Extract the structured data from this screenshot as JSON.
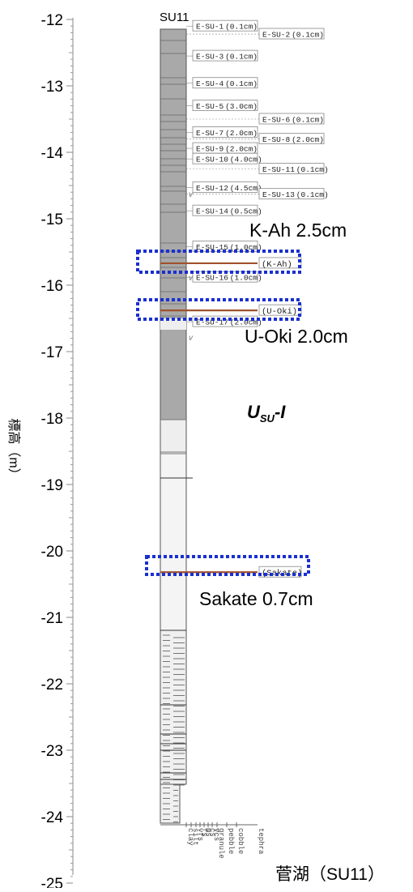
{
  "column_title": "SU11",
  "y_axis": {
    "label": "標高（m）",
    "tick_labels": [
      "-12",
      "-13",
      "-14",
      "-15",
      "-16",
      "-17",
      "-18",
      "-19",
      "-20",
      "-21",
      "-22",
      "-23",
      "-24",
      "-25"
    ]
  },
  "samples": [
    {
      "label": "E-SU-1 (0.1cm)",
      "elev": -12.1,
      "col": 1
    },
    {
      "label": "E-SU-2 (0.1cm)",
      "elev": -12.22,
      "col": 2
    },
    {
      "label": "E-SU-3 (0.1cm)",
      "elev": -12.55,
      "col": 1
    },
    {
      "label": "E-SU-4 (0.1cm)",
      "elev": -12.96,
      "col": 1
    },
    {
      "label": "E-SU-5 (3.0cm)",
      "elev": -13.3,
      "col": 1
    },
    {
      "label": "E-SU-6 (0.1cm)",
      "elev": -13.5,
      "col": 2
    },
    {
      "label": "E-SU-7 (2.0cm)",
      "elev": -13.7,
      "col": 1
    },
    {
      "label": "E-SU-8 (2.0cm)",
      "elev": -13.8,
      "col": 2
    },
    {
      "label": "E-SU-9 (2.0cm)",
      "elev": -13.94,
      "col": 1
    },
    {
      "label": "E-SU-10 (4.0cm)",
      "elev": -14.1,
      "col": 1
    },
    {
      "label": "E-SU-11 (0.1cm)",
      "elev": -14.25,
      "col": 2
    },
    {
      "label": "E-SU-12 (4.5cm)",
      "elev": -14.53,
      "col": 1
    },
    {
      "label": "E-SU-13 (0.1cm)",
      "elev": -14.63,
      "col": 2
    },
    {
      "label": "E-SU-14 (0.5cm)",
      "elev": -14.88,
      "col": 1
    },
    {
      "label": "E-SU-15 (1.0cm)",
      "elev": -15.42,
      "col": 1
    },
    {
      "label": "E-SU-16 (1.0cm)",
      "elev": -15.88,
      "col": 1
    },
    {
      "label": "E-SU-17 (2.0cm)",
      "elev": -16.55,
      "col": 1
    }
  ],
  "tephra_in_column": [
    {
      "label": "(K-Ah)",
      "elev": -15.67
    },
    {
      "label": "(U-Oki)",
      "elev": -16.38
    },
    {
      "label": "(Sakate)",
      "elev": -20.32
    }
  ],
  "tephra_callouts": [
    {
      "text": "K-Ah  2.5cm",
      "elev": -15.67
    },
    {
      "text": "U-Oki  2.0cm",
      "elev": -16.45
    },
    {
      "text": "Sakate  0.7cm",
      "elev": -20.32
    }
  ],
  "unit_label": {
    "main": "U",
    "sub": "SU",
    "suffix": "-I"
  },
  "grain_size_labels": [
    "clay",
    "silt",
    "vfs",
    "fs",
    "ms",
    "cs",
    "vcs",
    "granule",
    "pebble",
    "cobble"
  ],
  "tephra_column_label": "tephra",
  "site_caption": "菅湖（SU11）",
  "colors": {
    "highlight_box": "#1a2fd0",
    "tephra_line": "#a0522d",
    "mud_dark": "#a9a9a9",
    "mud_light": "#eeeeee",
    "lower_unit": "#f4f4f4"
  }
}
